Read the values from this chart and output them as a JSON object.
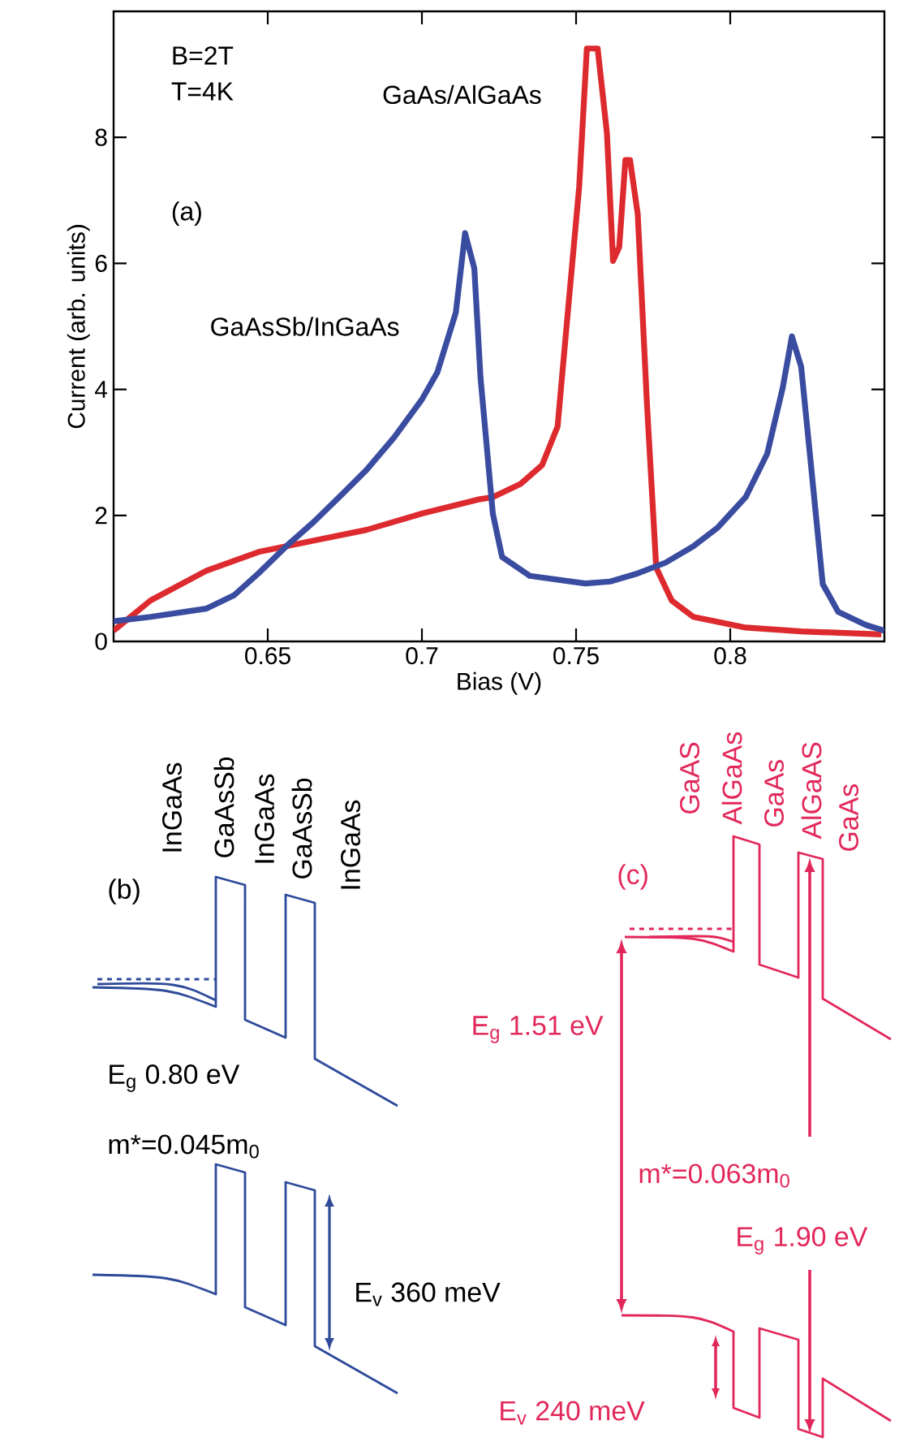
{
  "chart_data": [
    {
      "type": "line",
      "xlabel": "Bias (V)",
      "ylabel": "Current (arb. units)",
      "xlim": [
        0.6,
        0.85
      ],
      "ylim": [
        0,
        10
      ],
      "xticks": [
        0.65,
        0.7,
        0.75,
        0.8
      ],
      "yticks": [
        0,
        2,
        4,
        6,
        8
      ],
      "marker": "none",
      "line_style": "solid",
      "annotations": [
        "B=2T",
        "T=4K",
        "(a)"
      ],
      "series": [
        {
          "name": "GaAs/AlGaAs",
          "color": "#dd2a2e",
          "x": [
            0.6,
            0.612,
            0.63,
            0.647,
            0.665,
            0.682,
            0.7,
            0.718,
            0.723,
            0.732,
            0.739,
            0.744,
            0.747,
            0.751,
            0.7535,
            0.757,
            0.76,
            0.762,
            0.764,
            0.766,
            0.7675,
            0.77,
            0.773,
            0.776,
            0.781,
            0.788,
            0.805,
            0.823,
            0.849
          ],
          "values": [
            0.17,
            0.65,
            1.12,
            1.42,
            1.6,
            1.77,
            2.03,
            2.25,
            2.29,
            2.5,
            2.8,
            3.41,
            5.05,
            7.21,
            9.41,
            9.41,
            8.07,
            6.04,
            6.26,
            7.64,
            7.64,
            6.78,
            3.76,
            1.17,
            0.65,
            0.39,
            0.22,
            0.16,
            0.11
          ]
        },
        {
          "name": "GaAsSb/InGaAs",
          "color": "#3a4ca0",
          "x": [
            0.6,
            0.612,
            0.63,
            0.639,
            0.647,
            0.656,
            0.665,
            0.674,
            0.682,
            0.691,
            0.7,
            0.705,
            0.711,
            0.714,
            0.717,
            0.719,
            0.723,
            0.726,
            0.735,
            0.753,
            0.761,
            0.77,
            0.779,
            0.788,
            0.796,
            0.805,
            0.812,
            0.817,
            0.82,
            0.823,
            0.826,
            0.83,
            0.835,
            0.844,
            0.85
          ],
          "values": [
            0.32,
            0.39,
            0.52,
            0.73,
            1.08,
            1.51,
            1.9,
            2.33,
            2.72,
            3.24,
            3.84,
            4.27,
            5.22,
            6.48,
            5.92,
            4.19,
            2.03,
            1.34,
            1.04,
            0.92,
            0.95,
            1.08,
            1.25,
            1.51,
            1.81,
            2.29,
            2.98,
            4.02,
            4.84,
            4.36,
            2.89,
            0.91,
            0.47,
            0.26,
            0.17
          ]
        }
      ]
    },
    {
      "type": "other",
      "annotations": [
        "(b)",
        "InGaAs",
        "GaAsSb",
        "InGaAs",
        "GaAsSb",
        "InGaAs",
        "E$_{g}$  0.80 eV",
        "m*=0.045m$_{0}$",
        "E$_{v}$  360 meV"
      ]
    },
    {
      "type": "other",
      "annotations": [
        "(c)",
        "GaAS",
        "AlGaAs",
        "GaAs",
        "AlGaAS",
        "GaAs",
        "E$_{g}$ 1.51 eV",
        "m*=0.063m$_{0}$",
        "E$_{g}$ 1.90 eV",
        "E$_{v}$  240 meV"
      ]
    }
  ]
}
